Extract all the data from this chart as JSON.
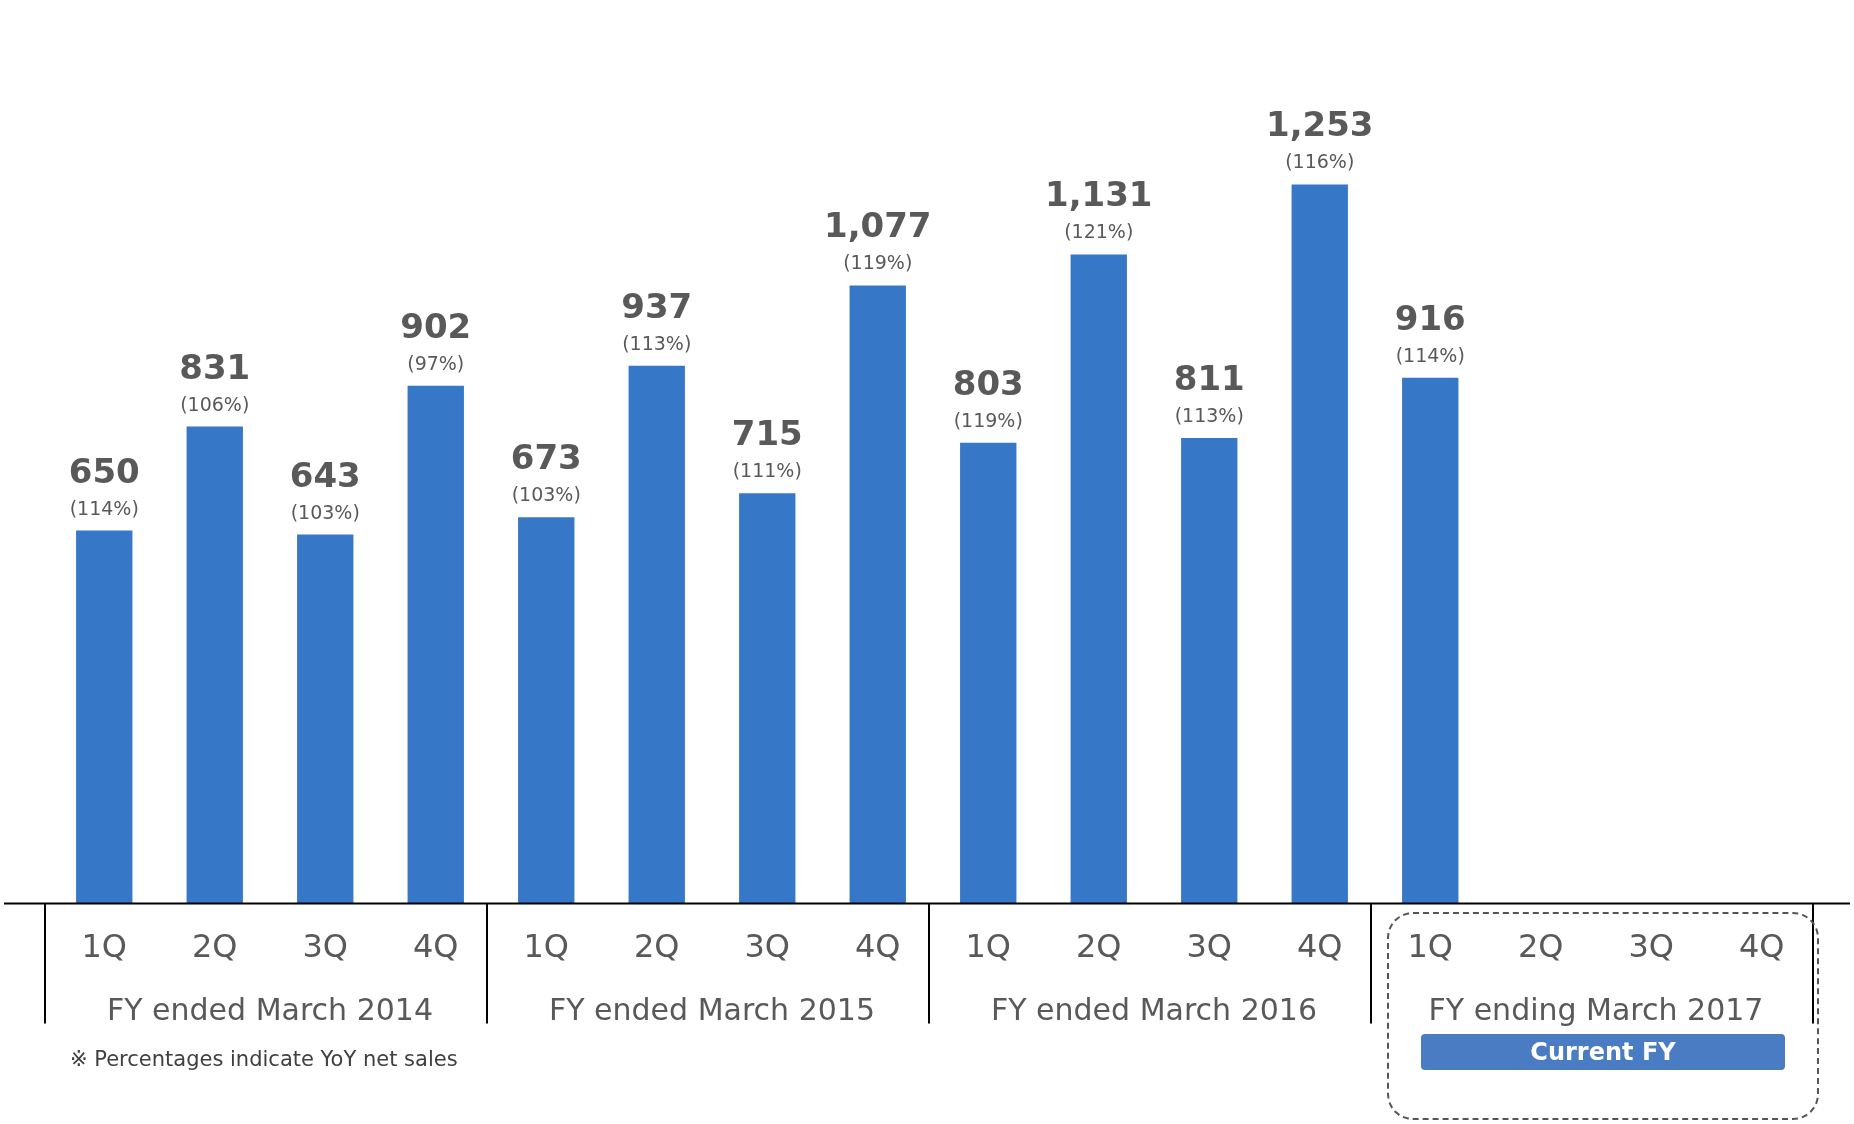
{
  "chart_data": {
    "type": "bar",
    "categories": [
      "1Q",
      "2Q",
      "3Q",
      "4Q",
      "1Q",
      "2Q",
      "3Q",
      "4Q",
      "1Q",
      "2Q",
      "3Q",
      "4Q",
      "1Q",
      "2Q",
      "3Q",
      "4Q"
    ],
    "values": [
      650,
      831,
      643,
      902,
      673,
      937,
      715,
      1077,
      803,
      1131,
      811,
      1253,
      916,
      null,
      null,
      null
    ],
    "value_labels": [
      "650\n(114%)",
      "831\n(106%)",
      "643\n(103%)",
      "902\n(97%)",
      "673\n(103%)",
      "937\n(113%)",
      "715\n(111%)",
      "1,077\n(119%)",
      "803\n(119%)",
      "1,131\n(121%)",
      "811\n(113%)",
      "1,253\n(116%)",
      "916\n(114%)",
      null,
      null,
      null
    ],
    "color": "#3677c8",
    "annotations": [
      "FY ended March 2014",
      "FY ended March 2015",
      "FY ended March 2016",
      "FY ending March 2017",
      "Current FY",
      "※ Percentages indicate YoY net sales"
    ],
    "legend": false,
    "grid": false
  }
}
